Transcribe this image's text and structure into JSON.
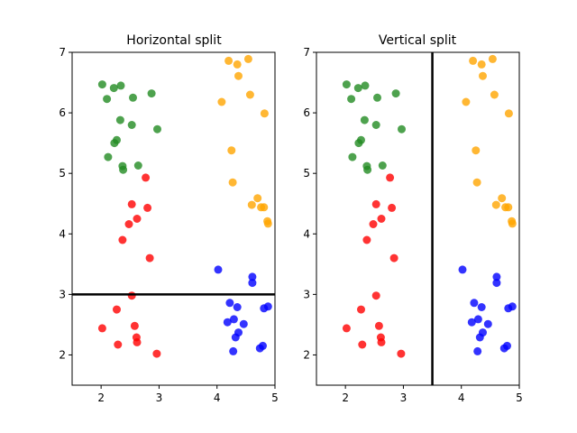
{
  "colors": {
    "green": "#228B22",
    "orange": "#FFA500",
    "red": "#FF0000",
    "blue": "#0000FF",
    "split": "#000000",
    "axes": "#000000",
    "background": "#FFFFFF"
  },
  "chart_data": [
    {
      "type": "scatter",
      "title": "Horizontal split",
      "xlabel": "",
      "ylabel": "",
      "xlim": [
        1.5,
        5.0
      ],
      "ylim": [
        1.5,
        7.0
      ],
      "xticks": [
        2,
        3,
        4,
        5
      ],
      "yticks": [
        2,
        3,
        4,
        5,
        6,
        7
      ],
      "grid": false,
      "split": {
        "orientation": "horizontal",
        "value": 3.0
      },
      "series": [
        {
          "name": "green",
          "color": "green",
          "points": [
            [
              2.02,
              6.47
            ],
            [
              2.1,
              6.23
            ],
            [
              2.22,
              6.41
            ],
            [
              2.34,
              6.45
            ],
            [
              2.55,
              6.25
            ],
            [
              2.87,
              6.32
            ],
            [
              2.97,
              5.73
            ],
            [
              2.33,
              5.88
            ],
            [
              2.53,
              5.8
            ],
            [
              2.27,
              5.55
            ],
            [
              2.23,
              5.5
            ],
            [
              2.12,
              5.27
            ],
            [
              2.37,
              5.12
            ],
            [
              2.38,
              5.06
            ],
            [
              2.64,
              5.13
            ]
          ]
        },
        {
          "name": "orange",
          "color": "orange",
          "points": [
            [
              4.2,
              6.86
            ],
            [
              4.35,
              6.8
            ],
            [
              4.54,
              6.89
            ],
            [
              4.37,
              6.61
            ],
            [
              4.08,
              6.18
            ],
            [
              4.57,
              6.3
            ],
            [
              4.82,
              5.99
            ],
            [
              4.25,
              5.38
            ],
            [
              4.27,
              4.85
            ],
            [
              4.7,
              4.59
            ],
            [
              4.6,
              4.48
            ],
            [
              4.76,
              4.44
            ],
            [
              4.81,
              4.44
            ],
            [
              4.87,
              4.21
            ],
            [
              4.88,
              4.17
            ]
          ]
        },
        {
          "name": "red",
          "color": "red",
          "points": [
            [
              2.77,
              4.93
            ],
            [
              2.53,
              4.49
            ],
            [
              2.8,
              4.43
            ],
            [
              2.62,
              4.25
            ],
            [
              2.48,
              4.16
            ],
            [
              2.37,
              3.9
            ],
            [
              2.84,
              3.6
            ],
            [
              2.53,
              2.98
            ],
            [
              2.27,
              2.75
            ],
            [
              2.02,
              2.44
            ],
            [
              2.58,
              2.48
            ],
            [
              2.61,
              2.29
            ],
            [
              2.62,
              2.21
            ],
            [
              2.29,
              2.17
            ],
            [
              2.96,
              2.02
            ]
          ]
        },
        {
          "name": "blue",
          "color": "blue",
          "points": [
            [
              4.02,
              3.41
            ],
            [
              4.61,
              3.29
            ],
            [
              4.61,
              3.19
            ],
            [
              4.22,
              2.86
            ],
            [
              4.35,
              2.79
            ],
            [
              4.81,
              2.77
            ],
            [
              4.88,
              2.8
            ],
            [
              4.18,
              2.54
            ],
            [
              4.29,
              2.59
            ],
            [
              4.46,
              2.51
            ],
            [
              4.37,
              2.37
            ],
            [
              4.32,
              2.29
            ],
            [
              4.79,
              2.15
            ],
            [
              4.74,
              2.11
            ],
            [
              4.28,
              2.06
            ]
          ]
        }
      ]
    },
    {
      "type": "scatter",
      "title": "Vertical split",
      "xlabel": "",
      "ylabel": "",
      "xlim": [
        1.5,
        5.0
      ],
      "ylim": [
        1.5,
        7.0
      ],
      "xticks": [
        2,
        3,
        4,
        5
      ],
      "yticks": [
        2,
        3,
        4,
        5,
        6,
        7
      ],
      "grid": false,
      "split": {
        "orientation": "vertical",
        "value": 3.5
      },
      "series": [
        {
          "name": "green",
          "color": "green",
          "points": [
            [
              2.02,
              6.47
            ],
            [
              2.1,
              6.23
            ],
            [
              2.22,
              6.41
            ],
            [
              2.34,
              6.45
            ],
            [
              2.55,
              6.25
            ],
            [
              2.87,
              6.32
            ],
            [
              2.97,
              5.73
            ],
            [
              2.33,
              5.88
            ],
            [
              2.53,
              5.8
            ],
            [
              2.27,
              5.55
            ],
            [
              2.23,
              5.5
            ],
            [
              2.12,
              5.27
            ],
            [
              2.37,
              5.12
            ],
            [
              2.38,
              5.06
            ],
            [
              2.64,
              5.13
            ]
          ]
        },
        {
          "name": "orange",
          "color": "orange",
          "points": [
            [
              4.2,
              6.86
            ],
            [
              4.35,
              6.8
            ],
            [
              4.54,
              6.89
            ],
            [
              4.37,
              6.61
            ],
            [
              4.08,
              6.18
            ],
            [
              4.57,
              6.3
            ],
            [
              4.82,
              5.99
            ],
            [
              4.25,
              5.38
            ],
            [
              4.27,
              4.85
            ],
            [
              4.7,
              4.59
            ],
            [
              4.6,
              4.48
            ],
            [
              4.76,
              4.44
            ],
            [
              4.81,
              4.44
            ],
            [
              4.87,
              4.21
            ],
            [
              4.88,
              4.17
            ]
          ]
        },
        {
          "name": "red",
          "color": "red",
          "points": [
            [
              2.77,
              4.93
            ],
            [
              2.53,
              4.49
            ],
            [
              2.8,
              4.43
            ],
            [
              2.62,
              4.25
            ],
            [
              2.48,
              4.16
            ],
            [
              2.37,
              3.9
            ],
            [
              2.84,
              3.6
            ],
            [
              2.53,
              2.98
            ],
            [
              2.27,
              2.75
            ],
            [
              2.02,
              2.44
            ],
            [
              2.58,
              2.48
            ],
            [
              2.61,
              2.29
            ],
            [
              2.62,
              2.21
            ],
            [
              2.29,
              2.17
            ],
            [
              2.96,
              2.02
            ]
          ]
        },
        {
          "name": "blue",
          "color": "blue",
          "points": [
            [
              4.02,
              3.41
            ],
            [
              4.61,
              3.29
            ],
            [
              4.61,
              3.19
            ],
            [
              4.22,
              2.86
            ],
            [
              4.35,
              2.79
            ],
            [
              4.81,
              2.77
            ],
            [
              4.88,
              2.8
            ],
            [
              4.18,
              2.54
            ],
            [
              4.29,
              2.59
            ],
            [
              4.46,
              2.51
            ],
            [
              4.37,
              2.37
            ],
            [
              4.32,
              2.29
            ],
            [
              4.79,
              2.15
            ],
            [
              4.74,
              2.11
            ],
            [
              4.28,
              2.06
            ]
          ]
        }
      ]
    }
  ]
}
